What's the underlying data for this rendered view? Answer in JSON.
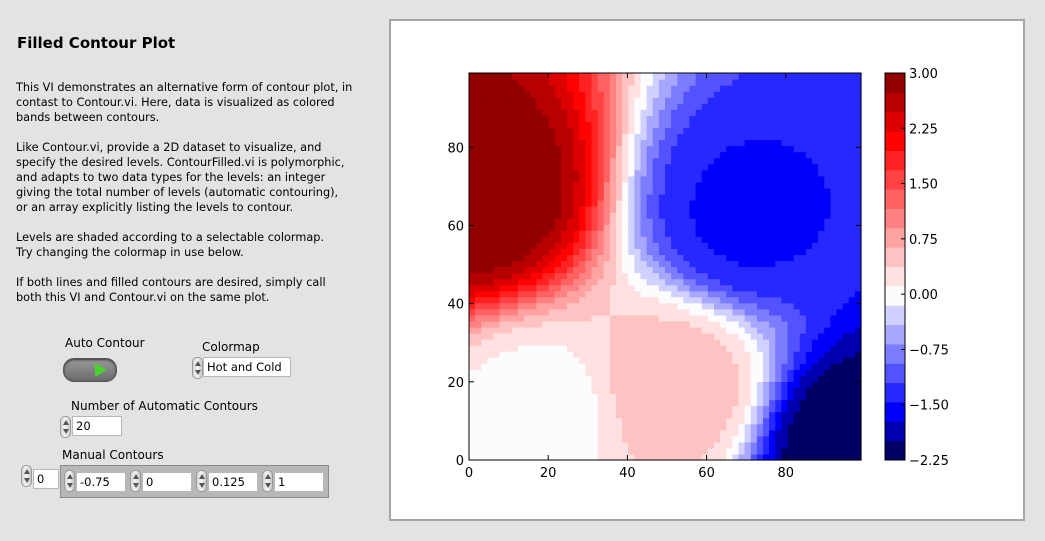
{
  "title": "Filled Contour Plot",
  "description": [
    "This VI demonstrates an alternative form of contour plot, in\ncontast to Contour.vi.  Here, data is visualized as colored\nbands between contours.",
    "Like Contour.vi, provide a 2D dataset to visualize, and\nspecify the desired levels.  ContourFilled.vi is polymorphic,\nand adapts to two data types for the levels: an integer\ngiving the total number of levels (automatic contouring),\nor an array explicitly listing the levels to contour.",
    "Levels are shaded according to a selectable colormap.\nTry changing the colormap in use below.",
    "If both lines and filled contours are desired, simply call\nboth this VI and Contour.vi on the same plot."
  ],
  "controls": {
    "auto_contour_label": "Auto Contour",
    "colormap_label": "Colormap",
    "colormap_value": "Hot and Cold",
    "num_auto_label": "Number of Automatic Contours",
    "num_auto_value": "20",
    "manual_label": "Manual Contours",
    "manual_index": "0",
    "manual_values": [
      "-0.75",
      "0",
      "0.125",
      "1"
    ]
  },
  "chart_data": {
    "type": "heatmap",
    "subtype": "filled-contour",
    "colormap": "Hot and Cold",
    "xlim": [
      0,
      99
    ],
    "ylim": [
      0,
      99
    ],
    "x_ticks": [
      0,
      20,
      40,
      60,
      80
    ],
    "y_ticks": [
      0,
      20,
      40,
      60,
      80
    ],
    "x_tick_labels": [
      "0",
      "20",
      "40",
      "60",
      "80"
    ],
    "y_tick_labels": [
      "0",
      "20",
      "40",
      "60",
      "80"
    ],
    "levels": 20,
    "value_range": [
      -2.25,
      3.0
    ],
    "colorbar_ticks": [
      3.0,
      2.25,
      1.5,
      0.75,
      0.0,
      -0.75,
      -1.5,
      -2.25
    ],
    "colorbar_tick_labels": [
      "3.00",
      "2.25",
      "1.50",
      "0.75",
      "0.00",
      "−0.75",
      "−1.50",
      "−2.25"
    ],
    "features": [
      {
        "x": 3,
        "y": 68,
        "value": 3.0
      },
      {
        "x": 70,
        "y": 63,
        "value": -1.5
      },
      {
        "x": 97,
        "y": 3,
        "value": -2.25
      },
      {
        "x": 18,
        "y": 12,
        "value": 0.0
      },
      {
        "x": 52,
        "y": 18,
        "value": 0.55
      }
    ]
  }
}
